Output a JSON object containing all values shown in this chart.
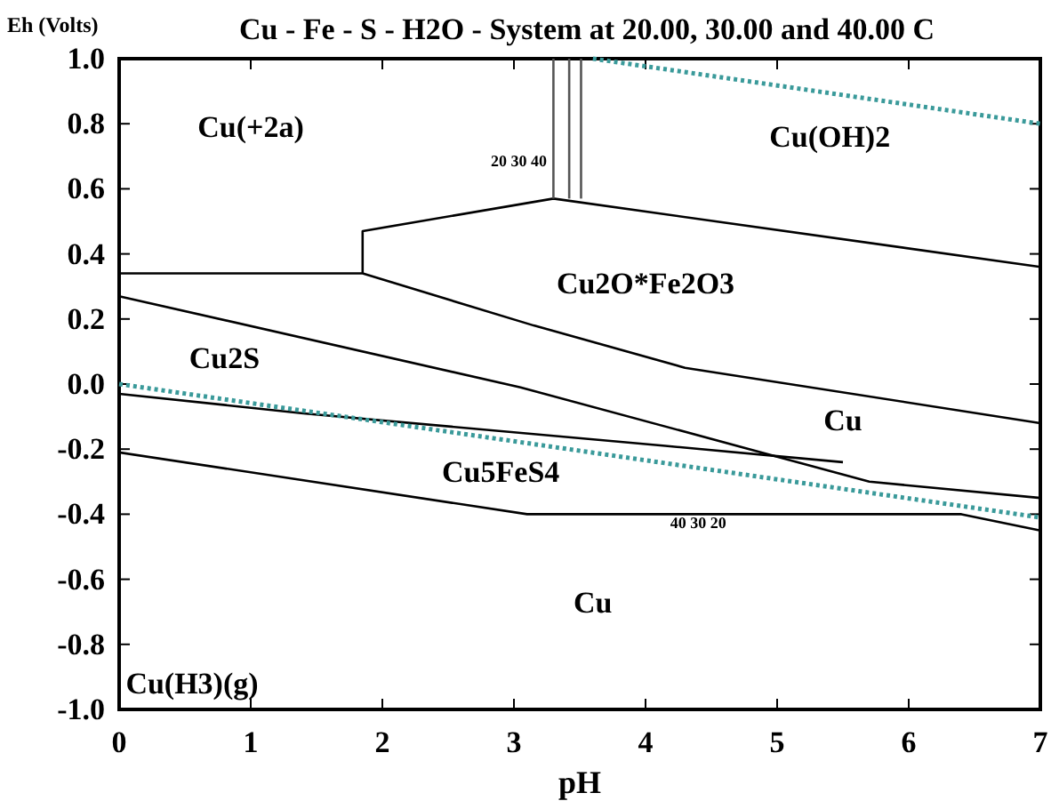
{
  "chart_data": {
    "type": "line",
    "title": "Cu - Fe - S - H2O - System at 20.00, 30.00 and 40.00 C",
    "xlabel": "pH",
    "ylabel": "Eh (Volts)",
    "xlim": [
      0,
      7
    ],
    "ylim": [
      -1.0,
      1.0
    ],
    "xticks": [
      0,
      1,
      2,
      3,
      4,
      5,
      6,
      7
    ],
    "yticks": [
      {
        "value": -1,
        "label": "-1.0"
      },
      {
        "value": -0.8,
        "label": "-0.8"
      },
      {
        "value": -0.6,
        "label": "-0.6"
      },
      {
        "value": -0.4,
        "label": "-0.4"
      },
      {
        "value": -0.2,
        "label": "-0.2"
      },
      {
        "value": 0,
        "label": "0.0"
      },
      {
        "value": 0.2,
        "label": "0.2"
      },
      {
        "value": 0.4,
        "label": "0.4"
      },
      {
        "value": 0.6,
        "label": "0.6"
      },
      {
        "value": 0.8,
        "label": "0.8"
      },
      {
        "value": 1,
        "label": "1.0"
      }
    ],
    "grid": false,
    "marker": "none",
    "series": [
      {
        "color": "#000000",
        "line_style": "solid",
        "x": [
          0,
          1.85,
          3.15,
          4.3,
          7
        ],
        "values": [
          0.34,
          0.34,
          0.18,
          0.05,
          -0.12
        ]
      },
      {
        "color": "#000000",
        "line_style": "solid",
        "x": [
          1.85,
          1.85,
          3.3,
          7
        ],
        "values": [
          0.34,
          0.47,
          0.57,
          0.36
        ]
      },
      {
        "color": "#555555",
        "line_style": "solid",
        "x": [
          3.3,
          3.3
        ],
        "values": [
          0.57,
          1.0
        ]
      },
      {
        "color": "#555555",
        "line_style": "solid",
        "x": [
          3.42,
          3.42
        ],
        "values": [
          0.57,
          1.0
        ]
      },
      {
        "color": "#555555",
        "line_style": "solid",
        "x": [
          3.51,
          3.51
        ],
        "values": [
          0.57,
          1.0
        ]
      },
      {
        "color": "#000000",
        "line_style": "solid",
        "x": [
          0,
          3.05,
          5.7,
          7
        ],
        "values": [
          0.27,
          -0.01,
          -0.3,
          -0.35
        ]
      },
      {
        "color": "#000000",
        "line_style": "solid",
        "x": [
          0,
          1.4,
          4.15,
          5.5
        ],
        "values": [
          -0.03,
          -0.09,
          -0.19,
          -0.24
        ]
      },
      {
        "color": "#000000",
        "line_style": "solid",
        "x": [
          0,
          3.1,
          6.4,
          7
        ],
        "values": [
          -0.21,
          -0.4,
          -0.4,
          -0.45
        ]
      },
      {
        "color": "#3a9a9a",
        "line_style": "dotted",
        "x": [
          0,
          7
        ],
        "values": [
          0.0,
          -0.41
        ]
      },
      {
        "color": "#3a9a9a",
        "line_style": "dotted",
        "x": [
          3.6,
          7
        ],
        "values": [
          1.0,
          0.8
        ]
      }
    ],
    "annotations": [
      "Cu(+2a)",
      "Cu(OH)2",
      "Cu2O*Fe2O3",
      "Cu2S",
      "Cu",
      "Cu5FeS4",
      "Cu",
      "Cu(H3)(g)",
      "40 30 20",
      "20 30 40"
    ]
  }
}
